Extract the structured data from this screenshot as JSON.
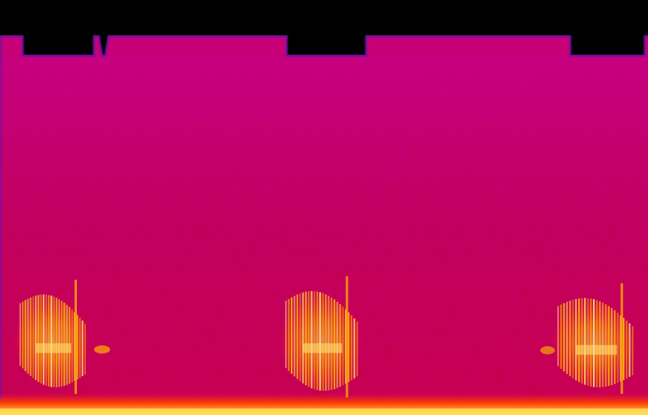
{
  "spectrogram": {
    "colormap": [
      "#000000",
      "#2a0070",
      "#7a0a8c",
      "#c8006a",
      "#e8102a",
      "#ff5a00",
      "#ffb000",
      "#ffe070"
    ],
    "background_color": "#c4004f",
    "noise_floor_color": "#b8005c",
    "clipped_region_color": "#000000",
    "bottom_band_color": "#ffdc50",
    "time_extent_fraction": [
      0.0,
      1.0
    ],
    "events": [
      {
        "start": 0.03,
        "end": 0.13,
        "low_freq": 0.06,
        "high_freq": 0.32,
        "intensity": 0.95
      },
      {
        "start": 0.44,
        "end": 0.55,
        "low_freq": 0.05,
        "high_freq": 0.33,
        "intensity": 0.95
      },
      {
        "start": 0.86,
        "end": 0.975,
        "low_freq": 0.06,
        "high_freq": 0.31,
        "intensity": 0.95
      }
    ]
  }
}
